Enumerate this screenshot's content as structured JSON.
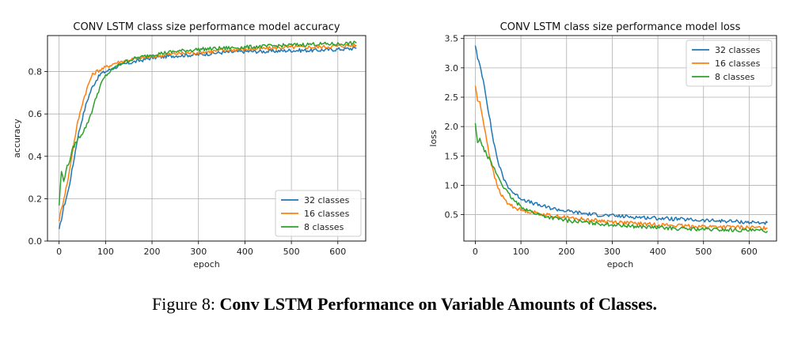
{
  "caption": {
    "prefix": "Figure 8:",
    "bold_text": "Conv LSTM Performance on Variable Amounts of Classes."
  },
  "colors": {
    "series_32": "#1f77b4",
    "series_16": "#ff7f0e",
    "series_8": "#2ca02c",
    "grid": "#b0b0b0",
    "axis": "#000000"
  },
  "chart_data": [
    {
      "type": "line",
      "title": "CONV LSTM class size performance model accuracy",
      "xlabel": "epoch",
      "ylabel": "accuracy",
      "xlim": [
        -25,
        660
      ],
      "ylim": [
        0.0,
        0.97
      ],
      "xticks": [
        0,
        100,
        200,
        300,
        400,
        500,
        600
      ],
      "yticks": [
        0.0,
        0.2,
        0.4,
        0.6,
        0.8
      ],
      "ytick_labels": [
        "0.0",
        "0.2",
        "0.4",
        "0.6",
        "0.8"
      ],
      "grid": true,
      "legend_position": "lower-right",
      "series": [
        {
          "name": "32 classes",
          "x": [
            0,
            10,
            20,
            30,
            40,
            50,
            60,
            70,
            80,
            90,
            100,
            120,
            140,
            160,
            180,
            200,
            250,
            300,
            350,
            400,
            450,
            500,
            550,
            600,
            640
          ],
          "y": [
            0.05,
            0.16,
            0.24,
            0.36,
            0.49,
            0.58,
            0.66,
            0.72,
            0.76,
            0.79,
            0.8,
            0.82,
            0.835,
            0.845,
            0.855,
            0.865,
            0.875,
            0.88,
            0.89,
            0.895,
            0.895,
            0.9,
            0.9,
            0.905,
            0.91
          ]
        },
        {
          "name": "16 classes",
          "x": [
            0,
            10,
            20,
            30,
            40,
            50,
            60,
            70,
            80,
            90,
            100,
            120,
            140,
            160,
            180,
            200,
            250,
            300,
            350,
            400,
            450,
            500,
            550,
            600,
            640
          ],
          "y": [
            0.1,
            0.2,
            0.3,
            0.44,
            0.56,
            0.65,
            0.72,
            0.78,
            0.8,
            0.81,
            0.82,
            0.84,
            0.85,
            0.86,
            0.865,
            0.87,
            0.885,
            0.89,
            0.9,
            0.905,
            0.91,
            0.915,
            0.915,
            0.92,
            0.925
          ]
        },
        {
          "name": "8 classes",
          "x": [
            0,
            5,
            10,
            15,
            20,
            30,
            40,
            50,
            60,
            70,
            80,
            90,
            100,
            120,
            140,
            160,
            180,
            200,
            250,
            300,
            350,
            400,
            450,
            500,
            550,
            600,
            640
          ],
          "y": [
            0.17,
            0.33,
            0.28,
            0.34,
            0.36,
            0.44,
            0.48,
            0.51,
            0.55,
            0.61,
            0.68,
            0.74,
            0.78,
            0.82,
            0.845,
            0.86,
            0.87,
            0.88,
            0.895,
            0.905,
            0.91,
            0.915,
            0.92,
            0.925,
            0.93,
            0.93,
            0.935
          ]
        }
      ]
    },
    {
      "type": "line",
      "title": "CONV LSTM class size performance model loss",
      "xlabel": "epoch",
      "ylabel": "loss",
      "xlim": [
        -25,
        660
      ],
      "ylim": [
        0.05,
        3.55
      ],
      "xticks": [
        0,
        100,
        200,
        300,
        400,
        500,
        600
      ],
      "yticks": [
        0.5,
        1.0,
        1.5,
        2.0,
        2.5,
        3.0,
        3.5
      ],
      "ytick_labels": [
        "0.5",
        "1.0",
        "1.5",
        "2.0",
        "2.5",
        "3.0",
        "3.5"
      ],
      "grid": true,
      "legend_position": "upper-right",
      "series": [
        {
          "name": "32 classes",
          "x": [
            0,
            5,
            10,
            20,
            30,
            40,
            50,
            60,
            70,
            80,
            90,
            100,
            120,
            140,
            160,
            180,
            200,
            250,
            300,
            350,
            400,
            450,
            500,
            550,
            600,
            640
          ],
          "y": [
            3.4,
            3.15,
            3.05,
            2.7,
            2.2,
            1.75,
            1.4,
            1.15,
            1.0,
            0.9,
            0.83,
            0.78,
            0.71,
            0.66,
            0.62,
            0.59,
            0.56,
            0.51,
            0.48,
            0.46,
            0.44,
            0.42,
            0.4,
            0.39,
            0.37,
            0.36
          ]
        },
        {
          "name": "16 classes",
          "x": [
            0,
            5,
            10,
            20,
            30,
            40,
            50,
            60,
            70,
            80,
            90,
            100,
            120,
            140,
            160,
            180,
            200,
            250,
            300,
            350,
            400,
            450,
            500,
            550,
            600,
            640
          ],
          "y": [
            2.7,
            2.45,
            2.4,
            2.0,
            1.55,
            1.2,
            0.95,
            0.8,
            0.7,
            0.65,
            0.61,
            0.58,
            0.55,
            0.52,
            0.49,
            0.47,
            0.45,
            0.41,
            0.38,
            0.35,
            0.33,
            0.31,
            0.3,
            0.29,
            0.28,
            0.27
          ]
        },
        {
          "name": "8 classes",
          "x": [
            0,
            5,
            10,
            15,
            20,
            30,
            40,
            50,
            60,
            70,
            80,
            90,
            100,
            120,
            140,
            160,
            180,
            200,
            250,
            300,
            350,
            400,
            450,
            500,
            550,
            600,
            640
          ],
          "y": [
            2.05,
            1.7,
            1.82,
            1.65,
            1.6,
            1.45,
            1.3,
            1.15,
            1.0,
            0.88,
            0.78,
            0.7,
            0.64,
            0.56,
            0.5,
            0.46,
            0.43,
            0.4,
            0.36,
            0.33,
            0.3,
            0.28,
            0.26,
            0.25,
            0.24,
            0.23,
            0.22
          ]
        }
      ]
    }
  ]
}
